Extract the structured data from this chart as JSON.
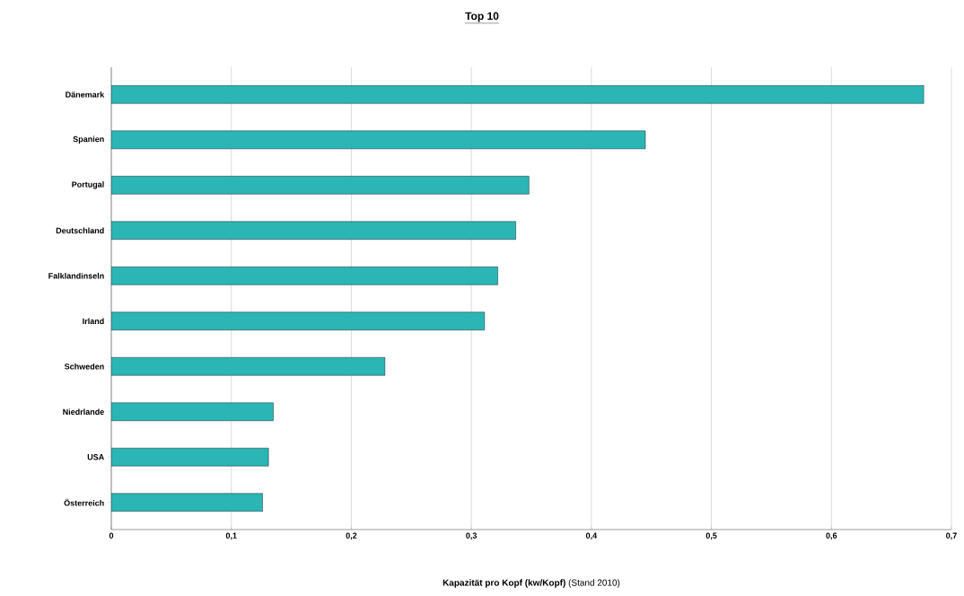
{
  "chart_data": {
    "type": "bar",
    "orientation": "horizontal",
    "title": "Top 10",
    "xlabel": "**Kapazität pro Kopf (kw/Kopf)** (Stand 2010)",
    "categories": [
      "Dänemark",
      "Spanien",
      "Portugal",
      "Deutschland",
      "Falklandinseln",
      "Irland",
      "Schweden",
      "Niedrlande",
      "USA",
      "Österreich"
    ],
    "values": [
      0.677,
      0.445,
      0.348,
      0.337,
      0.322,
      0.311,
      0.228,
      0.135,
      0.131,
      0.126
    ],
    "color": "#2bb5b5",
    "xlim": [
      0,
      0.7
    ],
    "xticks": [
      0,
      {
        "value": 0.1,
        "label": "0,1"
      },
      {
        "value": 0.2,
        "label": "0,2"
      },
      {
        "value": 0.3,
        "label": "0,3"
      },
      {
        "value": 0.4,
        "label": "0,4"
      },
      {
        "value": 0.5,
        "label": "0,5"
      },
      {
        "value": 0.6,
        "label": "0,6"
      },
      {
        "value": 0.7,
        "label": "0,7"
      }
    ],
    "grid": "x"
  }
}
